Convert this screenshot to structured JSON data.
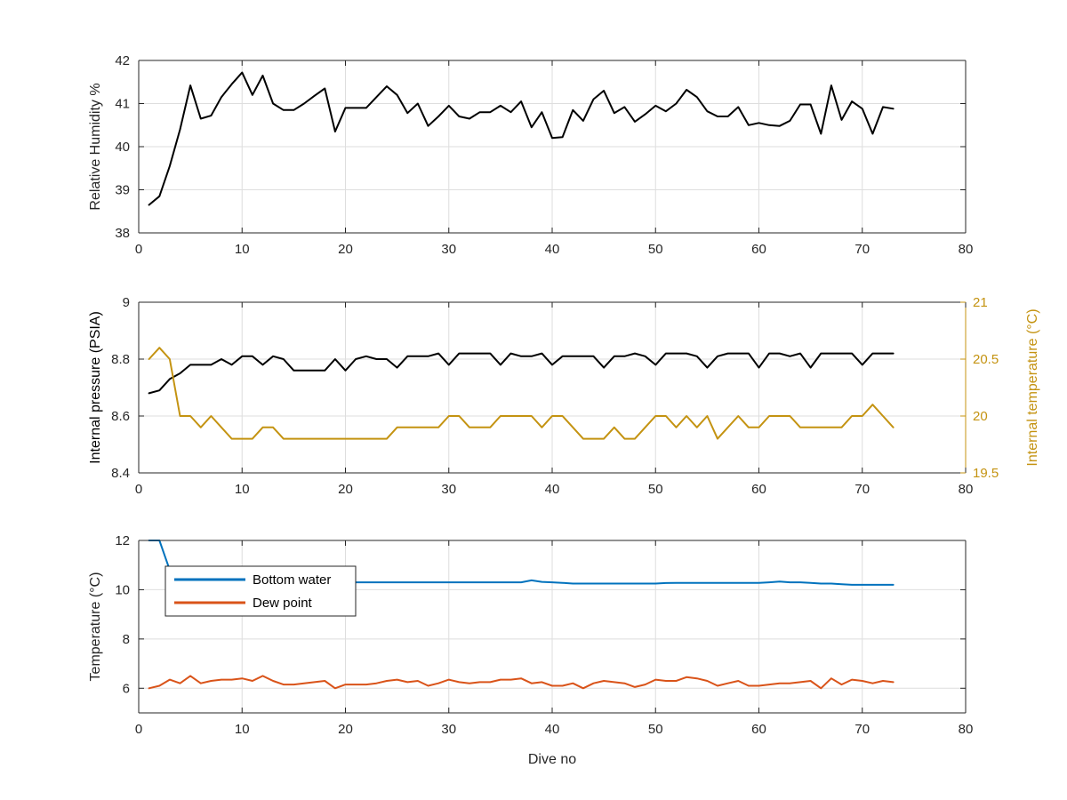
{
  "figure": {
    "xlabel": "Dive no"
  },
  "chart_data": [
    {
      "type": "line",
      "title": "",
      "xlabel": "",
      "ylabel": "Relative Humidity %",
      "xlim": [
        0,
        80
      ],
      "ylim": [
        38,
        42
      ],
      "xticks": [
        0,
        10,
        20,
        30,
        40,
        50,
        60,
        70,
        80
      ],
      "yticks": [
        38,
        39,
        40,
        41,
        42
      ],
      "grid": true,
      "legend": null,
      "x": [
        1,
        2,
        3,
        4,
        5,
        6,
        7,
        8,
        9,
        10,
        11,
        12,
        13,
        14,
        15,
        16,
        17,
        18,
        19,
        20,
        21,
        22,
        23,
        24,
        25,
        26,
        27,
        28,
        29,
        30,
        31,
        32,
        33,
        34,
        35,
        36,
        37,
        38,
        39,
        40,
        41,
        42,
        43,
        44,
        45,
        46,
        47,
        48,
        49,
        50,
        51,
        52,
        53,
        54,
        55,
        56,
        57,
        58,
        59,
        60,
        61,
        62,
        63,
        64,
        65,
        66,
        67,
        68,
        69,
        70,
        71,
        72,
        73
      ],
      "series": [
        {
          "color": "#000000",
          "axis": "left",
          "values": [
            38.65,
            38.85,
            39.55,
            40.4,
            41.42,
            40.65,
            40.72,
            41.15,
            41.45,
            41.72,
            41.2,
            41.65,
            41.0,
            40.85,
            40.85,
            41.0,
            41.18,
            41.35,
            40.35,
            40.9,
            40.9,
            40.9,
            41.15,
            41.4,
            41.2,
            40.78,
            41.0,
            40.48,
            40.7,
            40.95,
            40.7,
            40.65,
            40.8,
            40.8,
            40.95,
            40.8,
            41.05,
            40.45,
            40.8,
            40.2,
            40.22,
            40.85,
            40.6,
            41.1,
            41.3,
            40.78,
            40.92,
            40.58,
            40.75,
            40.95,
            40.82,
            41.0,
            41.32,
            41.15,
            40.82,
            40.7,
            40.7,
            40.92,
            40.5,
            40.55,
            40.5,
            40.48,
            40.6,
            40.98,
            40.98,
            40.3,
            41.42,
            40.62,
            41.05,
            40.88,
            40.3,
            40.92,
            40.88
          ]
        }
      ]
    },
    {
      "type": "line",
      "title": "",
      "xlabel": "",
      "ylabel": "Internal pressure (PSIA)",
      "y2label": "Internal temperature (°C)",
      "xlim": [
        0,
        80
      ],
      "ylim": [
        8.4,
        9
      ],
      "y2lim": [
        19.5,
        21
      ],
      "xticks": [
        0,
        10,
        20,
        30,
        40,
        50,
        60,
        70,
        80
      ],
      "yticks": [
        8.4,
        8.6,
        8.8,
        9
      ],
      "y2ticks": [
        19.5,
        20,
        20.5,
        21
      ],
      "grid": true,
      "legend": null,
      "x": [
        1,
        2,
        3,
        4,
        5,
        6,
        7,
        8,
        9,
        10,
        11,
        12,
        13,
        14,
        15,
        16,
        17,
        18,
        19,
        20,
        21,
        22,
        23,
        24,
        25,
        26,
        27,
        28,
        29,
        30,
        31,
        32,
        33,
        34,
        35,
        36,
        37,
        38,
        39,
        40,
        41,
        42,
        43,
        44,
        45,
        46,
        47,
        48,
        49,
        50,
        51,
        52,
        53,
        54,
        55,
        56,
        57,
        58,
        59,
        60,
        61,
        62,
        63,
        64,
        65,
        66,
        67,
        68,
        69,
        70,
        71,
        72,
        73
      ],
      "series": [
        {
          "color": "#000000",
          "axis": "left",
          "values": [
            8.68,
            8.69,
            8.73,
            8.75,
            8.78,
            8.78,
            8.78,
            8.8,
            8.78,
            8.81,
            8.81,
            8.78,
            8.81,
            8.8,
            8.76,
            8.76,
            8.76,
            8.76,
            8.8,
            8.76,
            8.8,
            8.81,
            8.8,
            8.8,
            8.77,
            8.81,
            8.81,
            8.81,
            8.82,
            8.78,
            8.82,
            8.82,
            8.82,
            8.82,
            8.78,
            8.82,
            8.81,
            8.81,
            8.82,
            8.78,
            8.81,
            8.81,
            8.81,
            8.81,
            8.77,
            8.81,
            8.81,
            8.82,
            8.81,
            8.78,
            8.82,
            8.82,
            8.82,
            8.81,
            8.77,
            8.81,
            8.82,
            8.82,
            8.82,
            8.77,
            8.82,
            8.82,
            8.81,
            8.82,
            8.77,
            8.82,
            8.82,
            8.82,
            8.82,
            8.78,
            8.82,
            8.82,
            8.82
          ]
        },
        {
          "color": "#c49311",
          "axis": "right",
          "values": [
            20.5,
            20.6,
            20.5,
            20.0,
            20.0,
            19.9,
            20.0,
            19.9,
            19.8,
            19.8,
            19.8,
            19.9,
            19.9,
            19.8,
            19.8,
            19.8,
            19.8,
            19.8,
            19.8,
            19.8,
            19.8,
            19.8,
            19.8,
            19.8,
            19.9,
            19.9,
            19.9,
            19.9,
            19.9,
            20.0,
            20.0,
            19.9,
            19.9,
            19.9,
            20.0,
            20.0,
            20.0,
            20.0,
            19.9,
            20.0,
            20.0,
            19.9,
            19.8,
            19.8,
            19.8,
            19.9,
            19.8,
            19.8,
            19.9,
            20.0,
            20.0,
            19.9,
            20.0,
            19.9,
            20.0,
            19.8,
            19.9,
            20.0,
            19.9,
            19.9,
            20.0,
            20.0,
            20.0,
            19.9,
            19.9,
            19.9,
            19.9,
            19.9,
            20.0,
            20.0,
            20.1,
            20.0,
            19.9
          ]
        }
      ]
    },
    {
      "type": "line",
      "title": "",
      "xlabel": "Dive no",
      "ylabel": "Temperature (°C)",
      "xlim": [
        0,
        80
      ],
      "ylim": [
        5,
        12
      ],
      "xticks": [
        0,
        10,
        20,
        30,
        40,
        50,
        60,
        70,
        80
      ],
      "yticks": [
        6,
        8,
        10,
        12
      ],
      "grid": true,
      "legend": "top-left",
      "x": [
        1,
        2,
        3,
        4,
        5,
        6,
        7,
        8,
        9,
        10,
        11,
        12,
        13,
        14,
        15,
        16,
        17,
        18,
        19,
        20,
        21,
        22,
        23,
        24,
        25,
        26,
        27,
        28,
        29,
        30,
        31,
        32,
        33,
        34,
        35,
        36,
        37,
        38,
        39,
        40,
        41,
        42,
        43,
        44,
        45,
        46,
        47,
        48,
        49,
        50,
        51,
        52,
        53,
        54,
        55,
        56,
        57,
        58,
        59,
        60,
        61,
        62,
        63,
        64,
        65,
        66,
        67,
        68,
        69,
        70,
        71,
        72,
        73
      ],
      "series": [
        {
          "name": "Bottom water",
          "color": "#0072bd",
          "values": [
            12.8,
            12.0,
            10.8,
            10.35,
            10.3,
            10.3,
            10.3,
            10.3,
            10.3,
            10.3,
            10.3,
            10.3,
            10.3,
            10.3,
            10.3,
            10.3,
            10.3,
            10.3,
            10.3,
            10.3,
            10.3,
            10.3,
            10.3,
            10.3,
            10.3,
            10.3,
            10.3,
            10.3,
            10.3,
            10.3,
            10.3,
            10.3,
            10.3,
            10.3,
            10.3,
            10.3,
            10.3,
            10.38,
            10.32,
            10.3,
            10.28,
            10.25,
            10.25,
            10.25,
            10.25,
            10.25,
            10.25,
            10.25,
            10.25,
            10.25,
            10.27,
            10.28,
            10.28,
            10.28,
            10.28,
            10.28,
            10.28,
            10.28,
            10.28,
            10.28,
            10.3,
            10.33,
            10.3,
            10.3,
            10.28,
            10.25,
            10.25,
            10.22,
            10.2,
            10.2,
            10.2,
            10.2,
            10.2
          ]
        },
        {
          "name": "Dew point",
          "color": "#d95319",
          "values": [
            6.0,
            6.1,
            6.35,
            6.2,
            6.5,
            6.2,
            6.3,
            6.35,
            6.35,
            6.4,
            6.3,
            6.5,
            6.3,
            6.15,
            6.15,
            6.2,
            6.25,
            6.3,
            6.0,
            6.15,
            6.15,
            6.15,
            6.2,
            6.3,
            6.35,
            6.25,
            6.3,
            6.1,
            6.2,
            6.35,
            6.25,
            6.2,
            6.25,
            6.25,
            6.35,
            6.35,
            6.4,
            6.2,
            6.25,
            6.1,
            6.1,
            6.2,
            6.0,
            6.2,
            6.3,
            6.25,
            6.2,
            6.05,
            6.15,
            6.35,
            6.3,
            6.3,
            6.45,
            6.4,
            6.3,
            6.1,
            6.2,
            6.3,
            6.1,
            6.1,
            6.15,
            6.2,
            6.2,
            6.25,
            6.3,
            6.0,
            6.4,
            6.15,
            6.35,
            6.3,
            6.2,
            6.3,
            6.25
          ]
        }
      ]
    }
  ]
}
